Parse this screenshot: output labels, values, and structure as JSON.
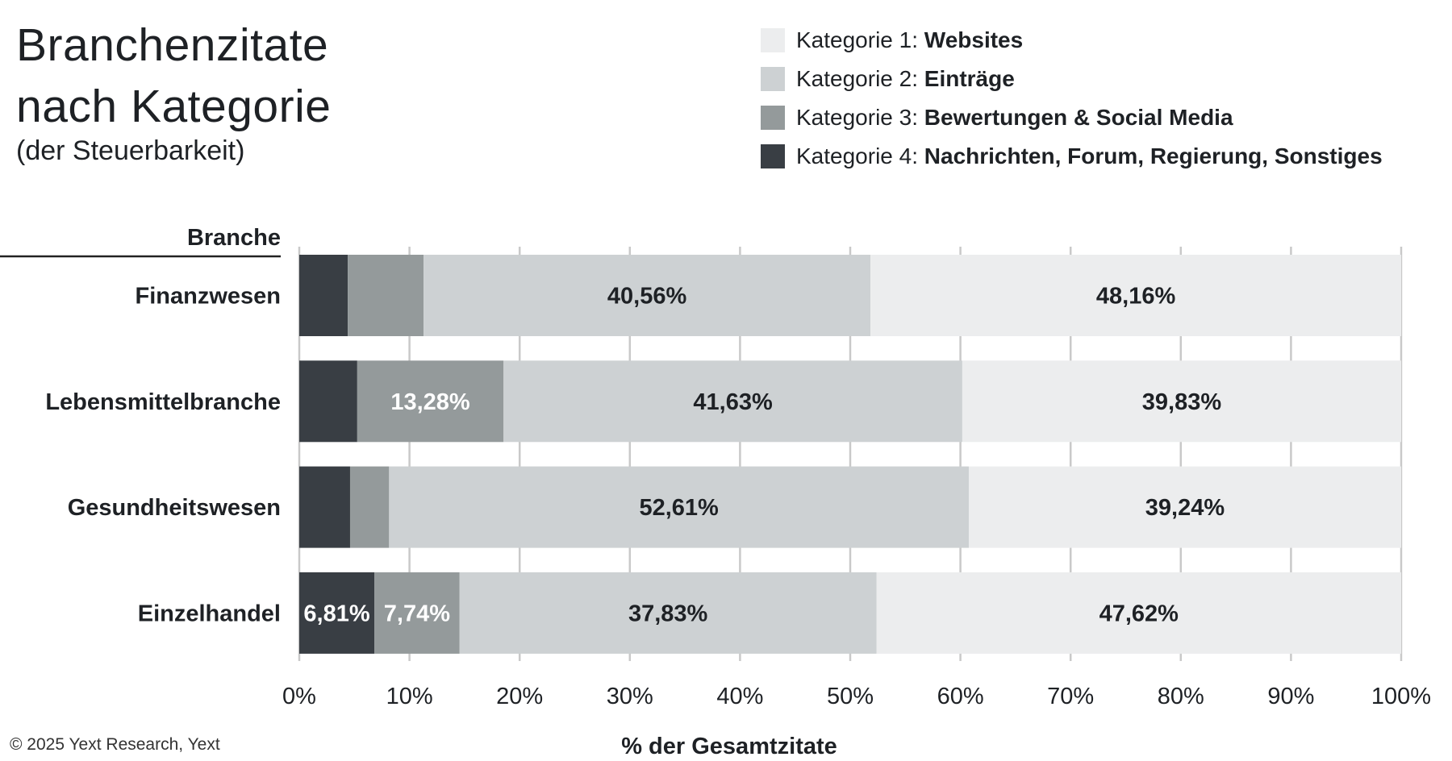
{
  "title_line1": "Branchenzitate",
  "title_line2": "nach Kategorie",
  "subtitle": "(der Steuerbarkeit)",
  "footer": "© 2025 Yext Research, Yext",
  "colors": {
    "cat1": "#ECEDEE",
    "cat2": "#CDD1D3",
    "cat3": "#949A9B",
    "cat4": "#393E44",
    "grid": "#c9c9c9",
    "axis": "#222222"
  },
  "legend": [
    {
      "prefix": "Kategorie 1: ",
      "name": "Websites"
    },
    {
      "prefix": "Kategorie 2: ",
      "name": "Einträge"
    },
    {
      "prefix": "Kategorie 3: ",
      "name": "Bewertungen & Social Media"
    },
    {
      "prefix": "Kategorie 4: ",
      "name": "Nachrichten, Forum, Regierung, Sonstiges"
    }
  ],
  "chart_data": {
    "type": "bar",
    "orientation": "horizontal",
    "stacked": true,
    "title": "Branchenzitate nach Kategorie (der Steuerbarkeit)",
    "ylabel": "Branche",
    "xlabel": "% der Gesamtzitate",
    "xlim": [
      0,
      100
    ],
    "xticks": [
      "0%",
      "10%",
      "20%",
      "30%",
      "40%",
      "50%",
      "60%",
      "70%",
      "80%",
      "90%",
      "100%"
    ],
    "categories": [
      "Finanzwesen",
      "Lebensmittelbranche",
      "Gesundheitswesen",
      "Einzelhandel"
    ],
    "series": [
      {
        "name": "Kategorie 4: Nachrichten, Forum, Regierung, Sonstiges",
        "values": [
          4.4,
          5.26,
          4.61,
          6.81
        ],
        "labels": [
          "",
          "",
          "",
          "6,81%"
        ]
      },
      {
        "name": "Kategorie 3: Bewertungen & Social Media",
        "values": [
          6.88,
          13.28,
          3.54,
          7.74
        ],
        "labels": [
          "",
          "13,28%",
          "",
          "7,74%"
        ]
      },
      {
        "name": "Kategorie 2: Einträge",
        "values": [
          40.56,
          41.63,
          52.61,
          37.83
        ],
        "labels": [
          "40,56%",
          "41,63%",
          "52,61%",
          "37,83%"
        ]
      },
      {
        "name": "Kategorie 1: Websites",
        "values": [
          48.16,
          39.83,
          39.24,
          47.62
        ],
        "labels": [
          "48,16%",
          "39,83%",
          "39,24%",
          "47,62%"
        ]
      }
    ],
    "grid": true,
    "legend_position": "top-right"
  }
}
